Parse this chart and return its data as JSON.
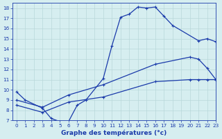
{
  "xlabel": "Graphe des températures (°c)",
  "bg_color": "#d6eef0",
  "grid_color": "#b8d8da",
  "line_color": "#1a3aaa",
  "xlim": [
    -0.5,
    23
  ],
  "ylim": [
    7,
    18.5
  ],
  "xticks": [
    0,
    1,
    2,
    3,
    4,
    5,
    6,
    7,
    8,
    9,
    10,
    11,
    12,
    13,
    14,
    15,
    16,
    17,
    18,
    19,
    20,
    21,
    22,
    23
  ],
  "yticks": [
    7,
    8,
    9,
    10,
    11,
    12,
    13,
    14,
    15,
    16,
    17,
    18
  ],
  "line1_x": [
    0,
    1,
    3,
    4,
    5,
    6,
    7,
    8,
    10,
    11,
    12,
    13,
    14,
    15,
    16,
    17,
    18,
    21,
    22,
    23
  ],
  "line1_y": [
    9.8,
    9.0,
    8.2,
    7.2,
    6.9,
    6.9,
    8.5,
    9.0,
    11.1,
    14.3,
    17.1,
    17.4,
    18.1,
    18.0,
    18.1,
    17.2,
    16.3,
    14.8,
    15.0,
    14.7
  ],
  "line2_x": [
    0,
    3,
    6,
    10,
    16,
    20,
    21,
    22,
    23
  ],
  "line2_y": [
    9.0,
    8.3,
    9.5,
    10.5,
    12.5,
    13.2,
    13.0,
    12.1,
    11.0
  ],
  "line3_x": [
    0,
    3,
    6,
    10,
    16,
    20,
    21,
    22,
    23
  ],
  "line3_y": [
    8.5,
    7.8,
    8.8,
    9.3,
    10.8,
    11.0,
    11.0,
    11.0,
    11.0
  ],
  "marker": "+"
}
